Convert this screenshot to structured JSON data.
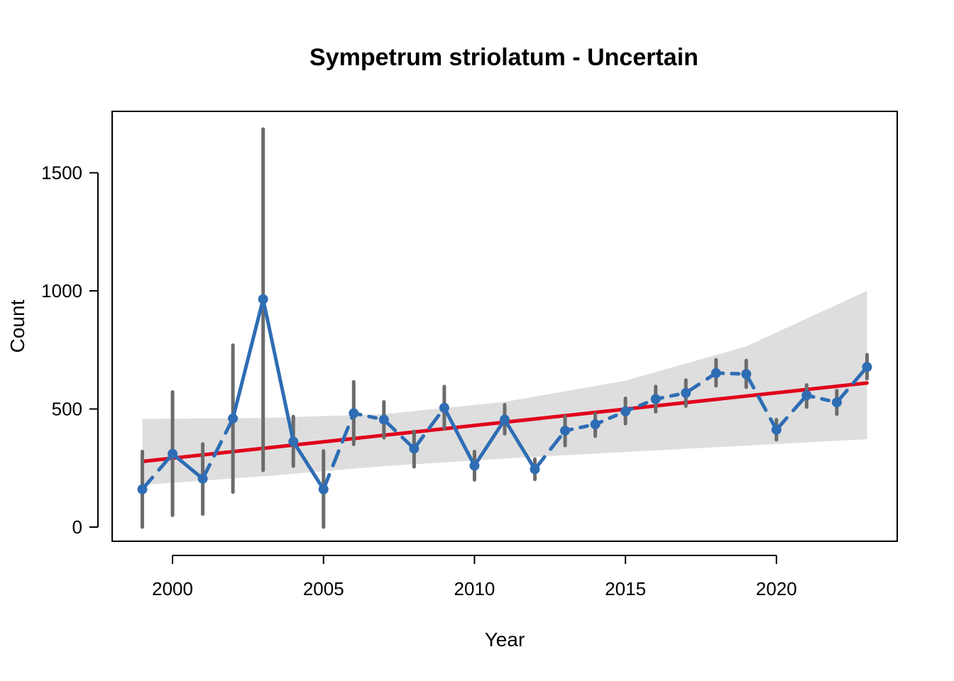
{
  "chart_data": {
    "type": "line",
    "title": "Sympetrum striolatum - Uncertain",
    "xlabel": "Year",
    "ylabel": "Count",
    "xlim": [
      1998,
      2024
    ],
    "ylim": [
      -60,
      1760
    ],
    "x_ticks": [
      "2000",
      "2005",
      "2010",
      "2015",
      "2020"
    ],
    "y_ticks": [
      "0",
      "500",
      "1000",
      "1500"
    ],
    "grid": false,
    "legend": "none",
    "colors": {
      "points": "#2E6DB4",
      "trend": "#E0001B",
      "error_bars": "#6B6B6B",
      "ci_band": "#DEDEDE",
      "frame": "#000000"
    },
    "series": [
      {
        "x": [
          1999,
          2000,
          2001,
          2002,
          2003,
          2004,
          2005,
          2006,
          2007,
          2008,
          2009,
          2010,
          2011,
          2012,
          2013,
          2014,
          2015,
          2016,
          2017,
          2018,
          2019,
          2020,
          2021,
          2022,
          2023
        ],
        "y": [
          160,
          310,
          205,
          460,
          965,
          362,
          160,
          482,
          455,
          332,
          505,
          260,
          455,
          245,
          408,
          435,
          490,
          542,
          568,
          652,
          648,
          412,
          558,
          528,
          678
        ],
        "lower": [
          0,
          50,
          55,
          148,
          240,
          258,
          0,
          350,
          378,
          255,
          418,
          200,
          395,
          202,
          345,
          385,
          438,
          488,
          512,
          598,
          592,
          370,
          508,
          478,
          628
        ],
        "upper": [
          320,
          572,
          352,
          770,
          1685,
          468,
          322,
          615,
          530,
          405,
          595,
          320,
          518,
          288,
          468,
          480,
          545,
          595,
          622,
          708,
          705,
          455,
          602,
          578,
          730
        ]
      }
    ],
    "segment_styles": [
      "dashed",
      "solid",
      "dashed",
      "solid",
      "solid",
      "solid",
      "dashed",
      "dotted",
      "dashed",
      "dashed",
      "solid",
      "solid",
      "solid",
      "dashed",
      "dotted",
      "dotted",
      "dotted",
      "dotted",
      "dashed",
      "dotted",
      "dashed",
      "dashed",
      "dotted",
      "dashed"
    ],
    "trend": {
      "x": [
        1999,
        2023
      ],
      "y": [
        278,
        610
      ]
    },
    "ci_band": {
      "x": [
        1999,
        2003,
        2007,
        2011,
        2015,
        2019,
        2023
      ],
      "lower": [
        178,
        215,
        258,
        290,
        318,
        345,
        372
      ],
      "upper": [
        458,
        462,
        478,
        530,
        620,
        765,
        1000
      ]
    }
  }
}
